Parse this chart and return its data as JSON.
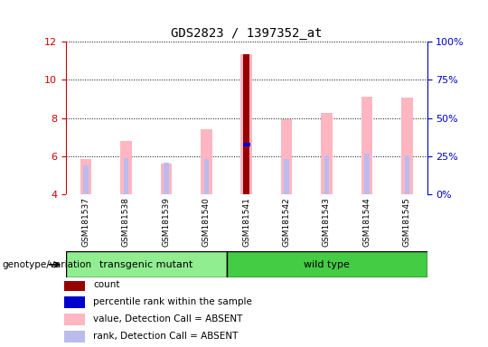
{
  "title": "GDS2823 / 1397352_at",
  "samples": [
    "GSM181537",
    "GSM181538",
    "GSM181539",
    "GSM181540",
    "GSM181541",
    "GSM181542",
    "GSM181543",
    "GSM181544",
    "GSM181545"
  ],
  "ylim_left": [
    4,
    12
  ],
  "ylim_right": [
    0,
    100
  ],
  "yticks_left": [
    4,
    6,
    8,
    10,
    12
  ],
  "yticks_right": [
    0,
    25,
    50,
    75,
    100
  ],
  "ytick_labels_right": [
    "0%",
    "25%",
    "50%",
    "75%",
    "100%"
  ],
  "value_bars": [
    5.85,
    6.8,
    5.6,
    7.4,
    11.35,
    7.95,
    8.25,
    9.1,
    9.05
  ],
  "rank_bars": [
    5.5,
    5.9,
    5.65,
    5.85,
    6.6,
    5.85,
    6.05,
    6.15,
    6.05
  ],
  "count_bar_idx": 4,
  "count_value": 11.35,
  "value_bar_color": "#FFB6C1",
  "rank_bar_color": "#BBBBEE",
  "count_bar_color": "#990000",
  "percentile_bar_color": "#0000CC",
  "left_ycolor": "#CC0000",
  "right_ycolor": "#0000CC",
  "transgenic_color": "#90EE90",
  "wildtype_color": "#44CC44",
  "xticklabel_bg": "#C8C8C8",
  "genotype_label": "genotype/variation",
  "legend_items": [
    {
      "label": "count",
      "color": "#990000"
    },
    {
      "label": "percentile rank within the sample",
      "color": "#0000CC"
    },
    {
      "label": "value, Detection Call = ABSENT",
      "color": "#FFB6C1"
    },
    {
      "label": "rank, Detection Call = ABSENT",
      "color": "#BBBBEE"
    }
  ]
}
